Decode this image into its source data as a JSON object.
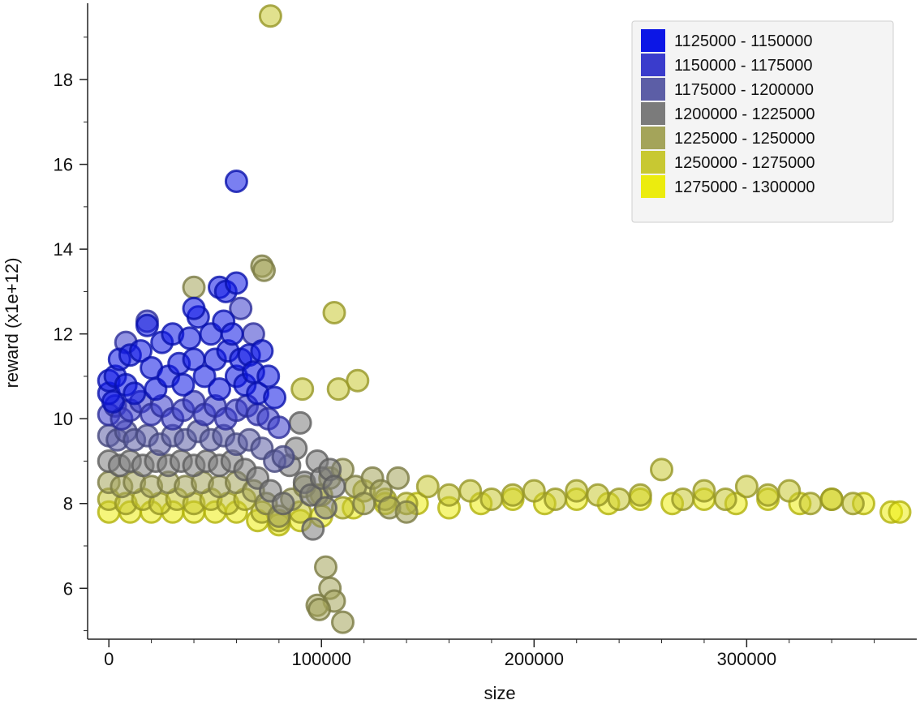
{
  "chart_data": {
    "type": "scatter",
    "title": "",
    "xlabel": "size",
    "ylabel": "reward (x1e+12)",
    "xlim": [
      -10000,
      380000
    ],
    "ylim": [
      4.8,
      19.8
    ],
    "grid": false,
    "legend_position": "top-right",
    "x_ticks": [
      0,
      100000,
      200000,
      300000
    ],
    "y_ticks": [
      6,
      8,
      10,
      12,
      14,
      16,
      18
    ],
    "series": [
      {
        "name": "1125000 - 1150000",
        "color": "#0c16e6",
        "points": [
          [
            0,
            10.6
          ],
          [
            0,
            10.9
          ],
          [
            2000,
            10.4
          ],
          [
            3000,
            11.0
          ],
          [
            5000,
            11.4
          ],
          [
            8000,
            10.8
          ],
          [
            10000,
            11.5
          ],
          [
            12000,
            10.6
          ],
          [
            15000,
            11.6
          ],
          [
            18000,
            12.2
          ],
          [
            20000,
            11.2
          ],
          [
            22000,
            10.7
          ],
          [
            25000,
            11.8
          ],
          [
            28000,
            11.0
          ],
          [
            30000,
            12.0
          ],
          [
            33000,
            11.3
          ],
          [
            35000,
            10.8
          ],
          [
            38000,
            11.9
          ],
          [
            40000,
            11.4
          ],
          [
            42000,
            12.4
          ],
          [
            45000,
            11.0
          ],
          [
            48000,
            12.0
          ],
          [
            50000,
            11.4
          ],
          [
            52000,
            10.7
          ],
          [
            54000,
            12.3
          ],
          [
            56000,
            11.6
          ],
          [
            58000,
            12.0
          ],
          [
            60000,
            11.0
          ],
          [
            62000,
            11.4
          ],
          [
            64000,
            10.8
          ],
          [
            66000,
            11.5
          ],
          [
            68000,
            11.1
          ],
          [
            70000,
            10.6
          ],
          [
            72000,
            11.6
          ],
          [
            75000,
            11.0
          ],
          [
            78000,
            10.5
          ],
          [
            60000,
            15.6
          ],
          [
            52000,
            13.1
          ],
          [
            55000,
            13.0
          ],
          [
            60000,
            13.2
          ],
          [
            40000,
            12.6
          ]
        ]
      },
      {
        "name": "1150000 - 1175000",
        "color": "#3a3ccc",
        "points": [
          [
            0,
            10.1
          ],
          [
            3000,
            10.3
          ],
          [
            6000,
            10.0
          ],
          [
            10000,
            10.2
          ],
          [
            15000,
            10.4
          ],
          [
            20000,
            10.1
          ],
          [
            25000,
            10.3
          ],
          [
            30000,
            10.0
          ],
          [
            35000,
            10.2
          ],
          [
            40000,
            10.4
          ],
          [
            45000,
            10.1
          ],
          [
            50000,
            10.3
          ],
          [
            55000,
            10.0
          ],
          [
            60000,
            10.2
          ],
          [
            65000,
            10.3
          ],
          [
            70000,
            10.1
          ],
          [
            75000,
            10.0
          ],
          [
            80000,
            9.8
          ],
          [
            18000,
            12.3
          ],
          [
            62000,
            12.6
          ],
          [
            68000,
            12.0
          ],
          [
            8000,
            11.8
          ]
        ]
      },
      {
        "name": "1175000 - 1200000",
        "color": "#5c5ea6",
        "points": [
          [
            0,
            9.6
          ],
          [
            4000,
            9.5
          ],
          [
            8000,
            9.7
          ],
          [
            12000,
            9.5
          ],
          [
            18000,
            9.6
          ],
          [
            24000,
            9.4
          ],
          [
            30000,
            9.6
          ],
          [
            36000,
            9.5
          ],
          [
            42000,
            9.7
          ],
          [
            48000,
            9.5
          ],
          [
            54000,
            9.6
          ],
          [
            60000,
            9.4
          ],
          [
            66000,
            9.5
          ],
          [
            72000,
            9.3
          ],
          [
            78000,
            9.0
          ],
          [
            82000,
            9.1
          ]
        ]
      },
      {
        "name": "1200000 - 1225000",
        "color": "#7b7b7b",
        "points": [
          [
            0,
            9.0
          ],
          [
            5000,
            8.9
          ],
          [
            10000,
            9.0
          ],
          [
            16000,
            8.9
          ],
          [
            22000,
            9.0
          ],
          [
            28000,
            8.9
          ],
          [
            34000,
            9.0
          ],
          [
            40000,
            8.9
          ],
          [
            46000,
            9.0
          ],
          [
            52000,
            8.9
          ],
          [
            58000,
            9.0
          ],
          [
            64000,
            8.8
          ],
          [
            70000,
            8.6
          ],
          [
            76000,
            8.3
          ],
          [
            82000,
            8.0
          ],
          [
            85000,
            8.9
          ],
          [
            88000,
            9.3
          ],
          [
            90000,
            9.9
          ],
          [
            92000,
            8.5
          ],
          [
            95000,
            8.2
          ],
          [
            98000,
            9.0
          ],
          [
            100000,
            8.6
          ],
          [
            102000,
            7.9
          ],
          [
            104000,
            8.8
          ],
          [
            106000,
            8.4
          ],
          [
            96000,
            7.4
          ]
        ]
      },
      {
        "name": "1225000 - 1250000",
        "color": "#a4a45a",
        "points": [
          [
            0,
            8.5
          ],
          [
            6000,
            8.4
          ],
          [
            12000,
            8.5
          ],
          [
            20000,
            8.4
          ],
          [
            28000,
            8.5
          ],
          [
            36000,
            8.4
          ],
          [
            44000,
            8.5
          ],
          [
            52000,
            8.4
          ],
          [
            60000,
            8.5
          ],
          [
            68000,
            8.3
          ],
          [
            74000,
            8.0
          ],
          [
            80000,
            7.7
          ],
          [
            86000,
            8.1
          ],
          [
            92000,
            8.4
          ],
          [
            98000,
            8.2
          ],
          [
            104000,
            8.6
          ],
          [
            110000,
            8.8
          ],
          [
            116000,
            8.4
          ],
          [
            120000,
            8.0
          ],
          [
            124000,
            8.6
          ],
          [
            128000,
            8.3
          ],
          [
            132000,
            7.9
          ],
          [
            136000,
            8.6
          ],
          [
            140000,
            7.8
          ],
          [
            40000,
            13.1
          ],
          [
            102000,
            6.5
          ],
          [
            104000,
            6.0
          ],
          [
            106000,
            5.7
          ],
          [
            98000,
            5.6
          ],
          [
            99000,
            5.5
          ],
          [
            110000,
            5.2
          ],
          [
            72000,
            13.6
          ],
          [
            73000,
            13.5
          ]
        ]
      },
      {
        "name": "1250000 - 1275000",
        "color": "#c8c832",
        "points": [
          [
            0,
            8.1
          ],
          [
            8000,
            8.0
          ],
          [
            16000,
            8.1
          ],
          [
            24000,
            8.0
          ],
          [
            32000,
            8.1
          ],
          [
            40000,
            8.0
          ],
          [
            48000,
            8.1
          ],
          [
            56000,
            8.0
          ],
          [
            64000,
            8.1
          ],
          [
            72000,
            7.8
          ],
          [
            80000,
            7.6
          ],
          [
            90000,
            7.8
          ],
          [
            100000,
            8.2
          ],
          [
            110000,
            7.9
          ],
          [
            120000,
            8.3
          ],
          [
            130000,
            8.1
          ],
          [
            140000,
            8.0
          ],
          [
            150000,
            8.4
          ],
          [
            160000,
            8.2
          ],
          [
            170000,
            8.3
          ],
          [
            180000,
            8.1
          ],
          [
            190000,
            8.2
          ],
          [
            200000,
            8.3
          ],
          [
            210000,
            8.1
          ],
          [
            220000,
            8.3
          ],
          [
            230000,
            8.2
          ],
          [
            240000,
            8.1
          ],
          [
            250000,
            8.2
          ],
          [
            260000,
            8.8
          ],
          [
            270000,
            8.1
          ],
          [
            280000,
            8.3
          ],
          [
            290000,
            8.1
          ],
          [
            300000,
            8.4
          ],
          [
            310000,
            8.2
          ],
          [
            320000,
            8.3
          ],
          [
            330000,
            8.0
          ],
          [
            340000,
            8.1
          ],
          [
            350000,
            8.0
          ],
          [
            106000,
            12.5
          ],
          [
            108000,
            10.7
          ],
          [
            117000,
            10.9
          ],
          [
            91000,
            10.7
          ],
          [
            76000,
            19.5
          ]
        ]
      },
      {
        "name": "1275000 - 1300000",
        "color": "#ecec0e",
        "points": [
          [
            0,
            7.8
          ],
          [
            10000,
            7.8
          ],
          [
            20000,
            7.8
          ],
          [
            30000,
            7.8
          ],
          [
            40000,
            7.8
          ],
          [
            50000,
            7.8
          ],
          [
            60000,
            7.8
          ],
          [
            70000,
            7.6
          ],
          [
            80000,
            7.5
          ],
          [
            90000,
            7.6
          ],
          [
            100000,
            7.7
          ],
          [
            115000,
            7.9
          ],
          [
            130000,
            8.0
          ],
          [
            145000,
            8.0
          ],
          [
            160000,
            7.9
          ],
          [
            175000,
            8.0
          ],
          [
            190000,
            8.1
          ],
          [
            205000,
            8.0
          ],
          [
            220000,
            8.1
          ],
          [
            235000,
            8.0
          ],
          [
            250000,
            8.1
          ],
          [
            265000,
            8.0
          ],
          [
            280000,
            8.1
          ],
          [
            295000,
            8.0
          ],
          [
            310000,
            8.1
          ],
          [
            325000,
            8.0
          ],
          [
            340000,
            8.1
          ],
          [
            355000,
            8.0
          ],
          [
            368000,
            7.8
          ],
          [
            372000,
            7.8
          ]
        ]
      }
    ]
  }
}
